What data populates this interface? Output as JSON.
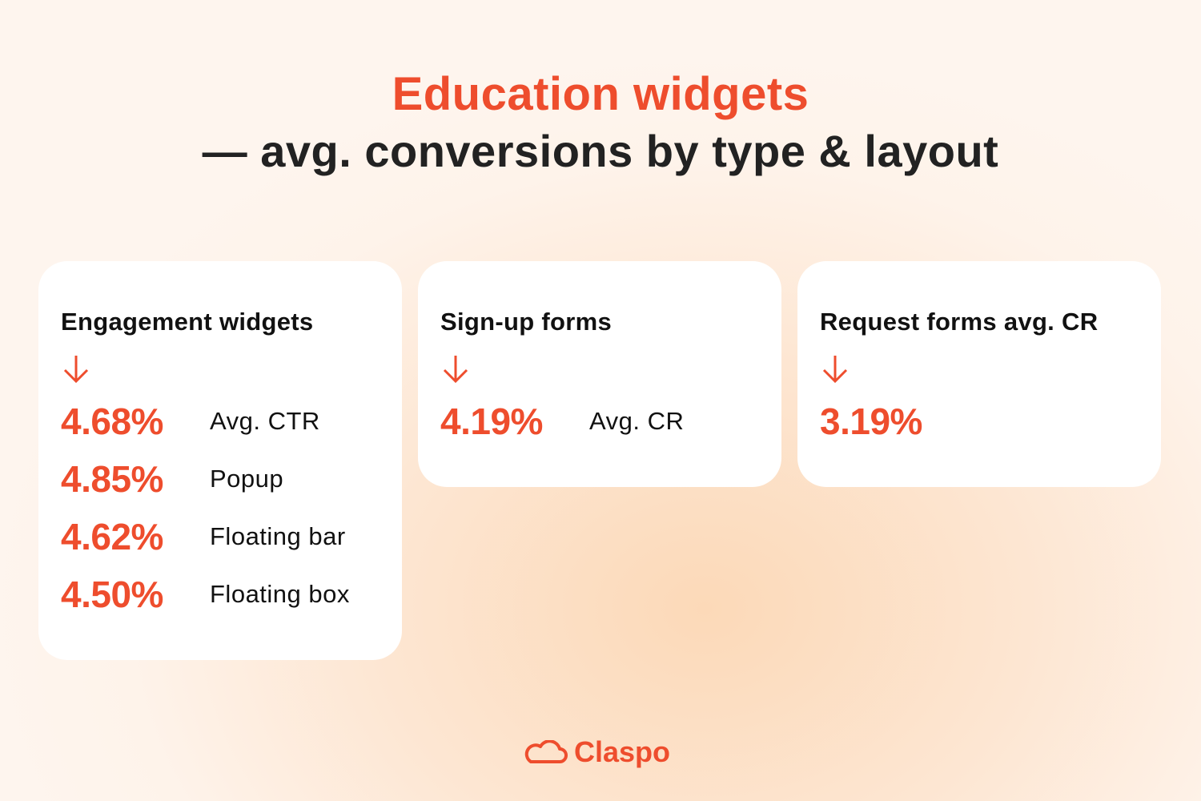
{
  "title": {
    "line1": "Education widgets",
    "line2": "— avg. conversions by type & layout"
  },
  "colors": {
    "accent": "#ee4d2d",
    "text": "#222222",
    "card": "#ffffff"
  },
  "cards": [
    {
      "heading": "Engagement widgets",
      "icon": "arrow-down-icon",
      "rows": [
        {
          "value": "4.68%",
          "label": "Avg. CTR"
        },
        {
          "value": "4.85%",
          "label": "Popup"
        },
        {
          "value": "4.62%",
          "label": "Floating bar"
        },
        {
          "value": "4.50%",
          "label": "Floating box"
        }
      ]
    },
    {
      "heading": "Sign-up forms",
      "icon": "arrow-down-icon",
      "rows": [
        {
          "value": "4.19%",
          "label": "Avg. CR"
        }
      ]
    },
    {
      "heading": "Request forms avg. CR",
      "icon": "arrow-down-icon",
      "rows": [
        {
          "value": "3.19%"
        }
      ]
    }
  ],
  "logo": {
    "text": "Claspo",
    "icon": "cloud-icon"
  }
}
